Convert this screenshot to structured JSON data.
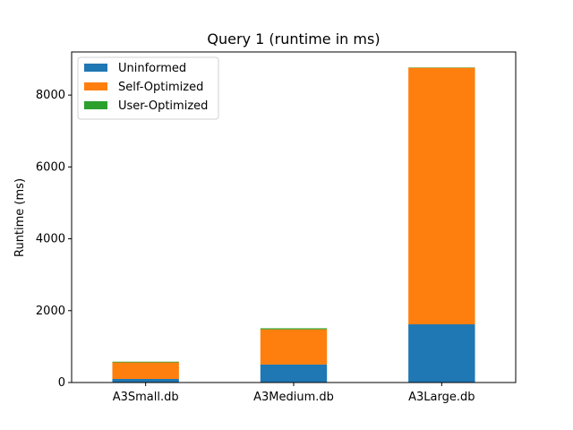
{
  "chart_data": {
    "type": "bar",
    "stacked": true,
    "title": "Query 1 (runtime in ms)",
    "xlabel": "",
    "ylabel": "Runtime (ms)",
    "categories": [
      "A3Small.db",
      "A3Medium.db",
      "A3Large.db"
    ],
    "ylim": [
      0,
      9200
    ],
    "yticks": [
      0,
      2000,
      4000,
      6000,
      8000
    ],
    "grid": false,
    "legend_position": "top-left",
    "series": [
      {
        "name": "Uninformed",
        "color": "#1f77b4",
        "values": [
          100,
          500,
          1620
        ]
      },
      {
        "name": "Self-Optimized",
        "color": "#ff7f0e",
        "values": [
          460,
          980,
          7140
        ]
      },
      {
        "name": "User-Optimized",
        "color": "#2ca02c",
        "values": [
          20,
          30,
          10
        ]
      }
    ]
  }
}
